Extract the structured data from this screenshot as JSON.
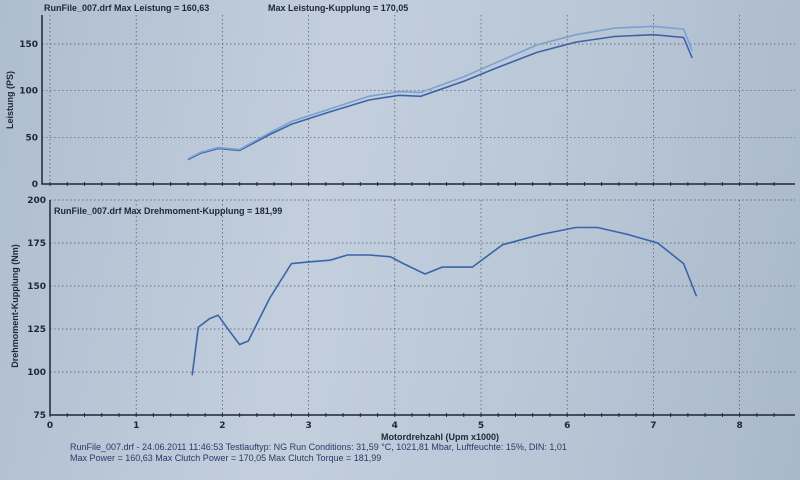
{
  "chart_data": [
    {
      "type": "line",
      "title": "RunFile_007.drf Max Leistung = 160,63",
      "subtitle": "Max Leistung-Kupplung = 170,05",
      "ylabel": "Leistung (PS)",
      "ylim": [
        0,
        180
      ],
      "yticks": [
        "0",
        "50",
        "100",
        "150"
      ],
      "xlim": [
        0,
        8.6
      ],
      "grid": true,
      "series": [
        {
          "x": [
            1.6,
            1.75,
            1.95,
            2.2,
            2.55,
            2.8,
            3.2,
            3.7,
            4.05,
            4.3,
            4.8,
            5.2,
            5.65,
            6.1,
            6.55,
            7.0,
            7.35,
            7.45
          ],
          "values": [
            26,
            33,
            38,
            36,
            53,
            64,
            76,
            90,
            95,
            94,
            110,
            125,
            141,
            152,
            158,
            160,
            157,
            135
          ]
        },
        {
          "x": [
            1.6,
            1.75,
            1.95,
            2.2,
            2.55,
            2.8,
            3.2,
            3.7,
            4.05,
            4.3,
            4.8,
            5.2,
            5.65,
            6.1,
            6.55,
            7.0,
            7.35,
            7.45
          ],
          "values": [
            27,
            34,
            39,
            37,
            55,
            67,
            79,
            94,
            99,
            98,
            115,
            131,
            149,
            160,
            167,
            169,
            166,
            143
          ]
        }
      ]
    },
    {
      "type": "line",
      "title": "RunFile_007.drf Max Drehmoment-Kupplung = 181,99",
      "ylabel": "Drehmoment-Kupplung (Nm)",
      "ylim": [
        75,
        200
      ],
      "yticks": [
        "75",
        "100",
        "125",
        "150",
        "175",
        "200"
      ],
      "xlabel": "Motordrehzahl (Upm x1000)",
      "xlim": [
        0,
        8.6
      ],
      "xticks": [
        "0",
        "1",
        "2",
        "3",
        "4",
        "5",
        "6",
        "7",
        "8"
      ],
      "grid": true,
      "series": [
        {
          "x": [
            1.65,
            1.72,
            1.85,
            1.95,
            2.05,
            2.2,
            2.3,
            2.55,
            2.8,
            3.0,
            3.25,
            3.45,
            3.7,
            3.95,
            4.1,
            4.35,
            4.55,
            4.9,
            5.25,
            5.7,
            6.1,
            6.35,
            6.7,
            7.05,
            7.35,
            7.5
          ],
          "values": [
            98,
            126,
            131,
            133,
            126,
            116,
            118,
            143,
            163,
            164,
            165,
            168,
            168,
            167,
            163,
            157,
            161,
            161,
            174,
            180,
            184,
            184,
            180,
            175,
            163,
            144
          ]
        }
      ]
    }
  ],
  "footer": {
    "line1": "RunFile_007.drf - 24.06.2011 11:46:53  Testlauftyp: NG  Run Conditions: 31,59 °C, 1021,81 Mbar,  Luftfeuchte: 15%, DIN: 1,01",
    "line2": "Max Power = 160,63  Max Clutch Power = 170,05  Max Clutch Torque = 181,99"
  },
  "colors": {
    "line": "#3a64a8",
    "line_light": "#7e9fd0"
  }
}
